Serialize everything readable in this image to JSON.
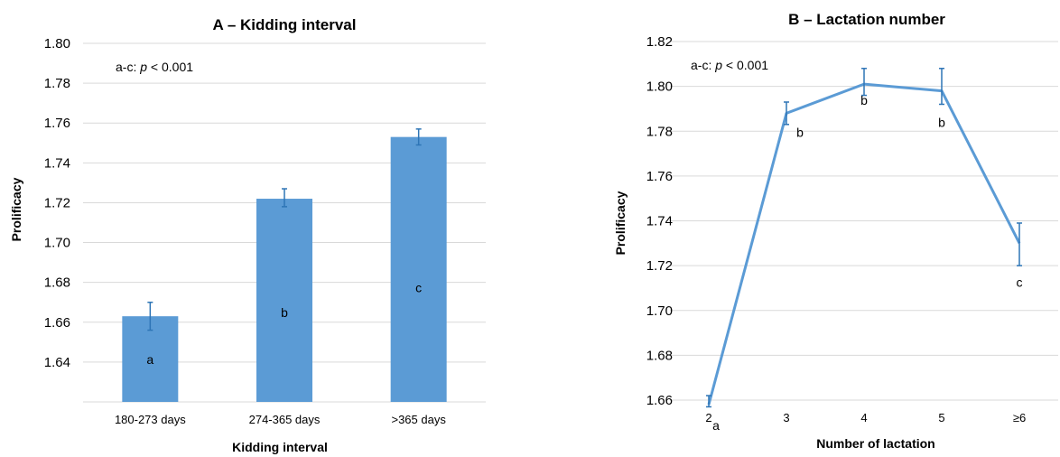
{
  "chart_data": [
    {
      "type": "bar",
      "title": "A – Kidding interval",
      "xlabel": "Kidding interval",
      "ylabel": "Prolificacy",
      "ylim": [
        1.62,
        1.8
      ],
      "yticks": [
        "1.80",
        "1.78",
        "1.76",
        "1.74",
        "1.72",
        "1.70",
        "1.68",
        "1.66",
        "1.64"
      ],
      "ytick_values": [
        1.8,
        1.78,
        1.76,
        1.74,
        1.72,
        1.7,
        1.68,
        1.66,
        1.64
      ],
      "grid": true,
      "annotation_prefix": "a-c: ",
      "annotation_p": "p",
      "annotation_suffix": " < 0.001",
      "categories": [
        "180-273 days",
        "274-365 days",
        ">365 days"
      ],
      "values": [
        1.663,
        1.722,
        1.753
      ],
      "err_low": [
        1.656,
        1.718,
        1.749
      ],
      "err_high": [
        1.67,
        1.727,
        1.757
      ],
      "sig_letters": [
        "a",
        "b",
        "c"
      ],
      "color": "#5b9bd5"
    },
    {
      "type": "line",
      "title": "B – Lactation number",
      "xlabel": "Number of lactation",
      "ylabel": "Prolificacy",
      "ylim": [
        1.66,
        1.82
      ],
      "yticks": [
        "1.82",
        "1.80",
        "1.78",
        "1.76",
        "1.74",
        "1.72",
        "1.70",
        "1.68",
        "1.66"
      ],
      "ytick_values": [
        1.82,
        1.8,
        1.78,
        1.76,
        1.74,
        1.72,
        1.7,
        1.68,
        1.66
      ],
      "grid": true,
      "annotation_prefix": "a-c: ",
      "annotation_p": "p",
      "annotation_suffix": " < 0.001",
      "categories": [
        "2",
        "3",
        "4",
        "5",
        "≥6"
      ],
      "values": [
        1.658,
        1.788,
        1.801,
        1.798,
        1.73
      ],
      "err_low": [
        1.657,
        1.783,
        1.796,
        1.792,
        1.72
      ],
      "err_high": [
        1.662,
        1.793,
        1.808,
        1.808,
        1.739
      ],
      "sig_letters": [
        "a",
        "b",
        "b",
        "b",
        "c"
      ],
      "color": "#5b9bd5"
    }
  ]
}
